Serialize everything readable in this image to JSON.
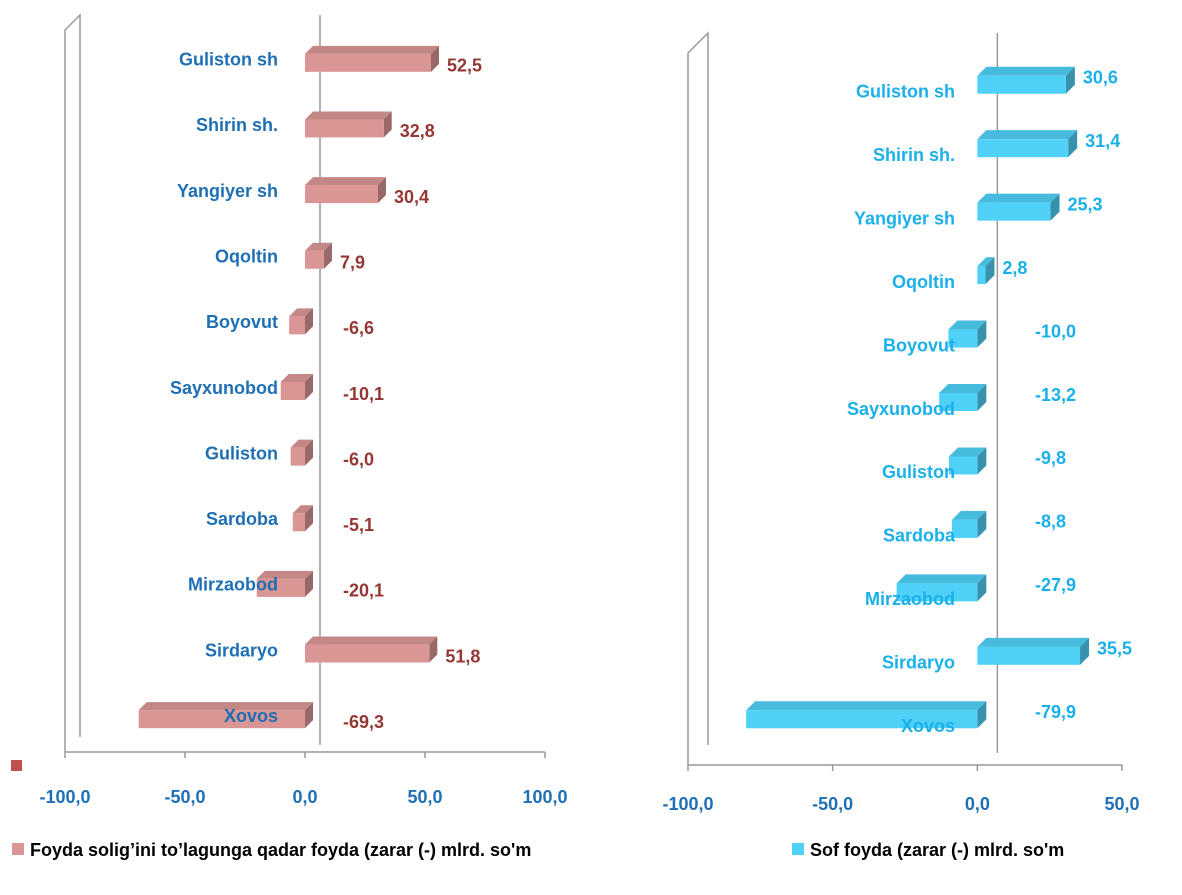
{
  "chart_data": [
    {
      "type": "bar",
      "orientation": "horizontal",
      "categories": [
        "Guliston sh",
        "Shirin sh.",
        "Yangiyer sh",
        "Oqoltin",
        "Boyovut",
        "Sayxunobod",
        "Guliston",
        "Sardoba",
        "Mirzaobod",
        "Sirdaryo",
        "Xovos"
      ],
      "series": [
        {
          "name": "Foyda solig’ini to’lagunga qadar foyda (zarar (-) mlrd. so'm",
          "color": "#d99694",
          "values": [
            52.5,
            32.8,
            30.4,
            7.9,
            -6.6,
            -10.1,
            -6.0,
            -5.1,
            -20.1,
            51.8,
            -69.3
          ],
          "value_labels": [
            "52,5",
            "32,8",
            "30,4",
            "7,9",
            "-6,6",
            "-10,1",
            "-6,0",
            "-5,1",
            "-20,1",
            "51,8",
            "-69,3"
          ]
        }
      ],
      "xlim": [
        -100,
        100
      ],
      "xticks": [
        {
          "value": -100,
          "label": "-100,0"
        },
        {
          "value": -50,
          "label": "-50,0"
        },
        {
          "value": 0,
          "label": "0,0"
        },
        {
          "value": 50,
          "label": "50,0"
        },
        {
          "value": 100,
          "label": "100,0"
        }
      ],
      "legend": "bottom"
    },
    {
      "type": "bar",
      "orientation": "horizontal",
      "categories": [
        "Guliston sh",
        "Shirin sh.",
        "Yangiyer sh",
        "Oqoltin",
        "Boyovut",
        "Sayxunobod",
        "Guliston",
        "Sardoba",
        "Mirzaobod",
        "Sirdaryo",
        "Xovos"
      ],
      "series": [
        {
          "name": "Sof foyda (zarar (-) mlrd. so'm",
          "color": "#4fd0f7",
          "values": [
            30.6,
            31.4,
            25.3,
            2.8,
            -10.0,
            -13.2,
            -9.8,
            -8.8,
            -27.9,
            35.5,
            -79.9
          ],
          "value_labels": [
            "30,6",
            "31,4",
            "25,3",
            "2,8",
            "-10,0",
            "-13,2",
            "-9,8",
            "-8,8",
            "-27,9",
            "35,5",
            "-79,9"
          ]
        }
      ],
      "xlim": [
        -100,
        50
      ],
      "xticks": [
        {
          "value": -100,
          "label": "-100,0"
        },
        {
          "value": -50,
          "label": "-50,0"
        },
        {
          "value": 0,
          "label": "0,0"
        },
        {
          "value": 50,
          "label": "50,0"
        }
      ],
      "legend": "bottom"
    }
  ]
}
